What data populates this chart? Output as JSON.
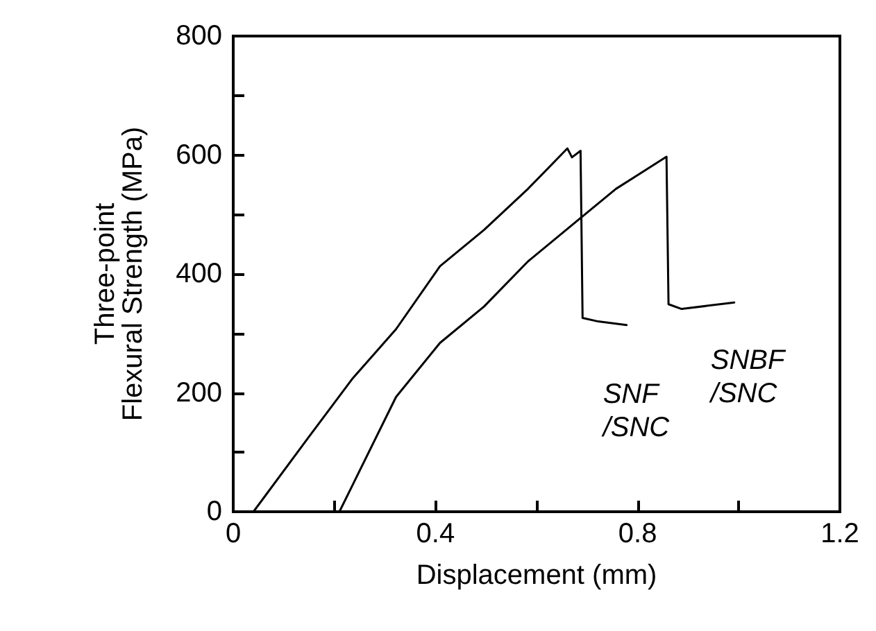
{
  "chart_data": {
    "type": "line",
    "xlabel": "Displacement (mm)",
    "ylabel": "Three-point\nFlexural Strength (MPa)",
    "xlim": [
      0,
      1.2
    ],
    "ylim": [
      0,
      800
    ],
    "xticks": [
      0,
      {
        "value": 0.2,
        "label": null
      },
      0.4,
      {
        "value": 0.6,
        "label": null
      },
      0.8,
      {
        "value": 1.0,
        "label": null
      },
      1.2
    ],
    "yticks": [
      0,
      {
        "value": 100,
        "label": null
      },
      200,
      {
        "value": 300,
        "label": null
      },
      400,
      {
        "value": 500,
        "label": null
      },
      600,
      {
        "value": 700,
        "label": null
      },
      800
    ],
    "grid": false,
    "marker": "none",
    "line_style": "solid",
    "series": [
      {
        "name": "SNF\n/SNC",
        "color": "#000000",
        "x": [
          0.04,
          0.148,
          0.235,
          0.322,
          0.409,
          0.496,
          0.583,
          0.661,
          0.67,
          0.687,
          0.691,
          0.722,
          0.778
        ],
        "values": [
          0,
          124,
          223,
          307,
          413,
          474,
          543,
          611,
          596,
          607,
          326,
          320,
          314
        ]
      },
      {
        "name": "SNBF\n/SNC",
        "color": "#000000",
        "x": [
          0.21,
          0.322,
          0.409,
          0.496,
          0.583,
          0.67,
          0.757,
          0.857,
          0.861,
          0.887,
          0.991
        ],
        "values": [
          0,
          193,
          284,
          345,
          421,
          482,
          543,
          597,
          349,
          341,
          352
        ]
      }
    ]
  }
}
